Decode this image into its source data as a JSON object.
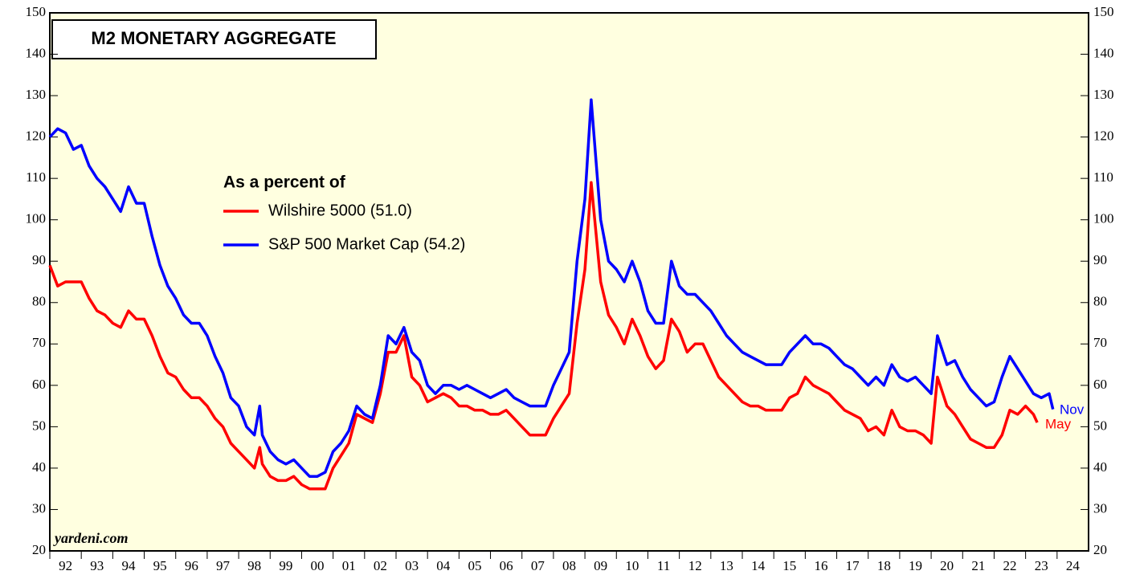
{
  "chart_data": {
    "type": "line",
    "title": "M2 MONETARY AGGREGATE",
    "subtitle": "As a percent of",
    "annotations": [
      "yardeni.com",
      "Nov",
      "May"
    ],
    "x": [
      1992.0,
      1992.25,
      1992.5,
      1992.75,
      1993.0,
      1993.25,
      1993.5,
      1993.75,
      1994.0,
      1994.25,
      1994.5,
      1994.75,
      1995.0,
      1995.25,
      1995.5,
      1995.75,
      1996.0,
      1996.25,
      1996.5,
      1996.75,
      1997.0,
      1997.25,
      1997.5,
      1997.75,
      1998.0,
      1998.25,
      1998.5,
      1998.67,
      1998.75,
      1999.0,
      1999.25,
      1999.5,
      1999.75,
      2000.0,
      2000.25,
      2000.5,
      2000.75,
      2001.0,
      2001.25,
      2001.5,
      2001.75,
      2002.0,
      2002.25,
      2002.5,
      2002.75,
      2003.0,
      2003.25,
      2003.5,
      2003.75,
      2004.0,
      2004.25,
      2004.5,
      2004.75,
      2005.0,
      2005.25,
      2005.5,
      2005.75,
      2006.0,
      2006.25,
      2006.5,
      2006.75,
      2007.0,
      2007.25,
      2007.5,
      2007.75,
      2008.0,
      2008.25,
      2008.5,
      2008.75,
      2009.0,
      2009.2,
      2009.5,
      2009.75,
      2010.0,
      2010.25,
      2010.5,
      2010.75,
      2011.0,
      2011.25,
      2011.5,
      2011.75,
      2012.0,
      2012.25,
      2012.5,
      2012.75,
      2013.0,
      2013.25,
      2013.5,
      2013.75,
      2014.0,
      2014.25,
      2014.5,
      2014.75,
      2015.0,
      2015.25,
      2015.5,
      2015.75,
      2016.0,
      2016.25,
      2016.5,
      2016.75,
      2017.0,
      2017.25,
      2017.5,
      2017.75,
      2018.0,
      2018.25,
      2018.5,
      2018.75,
      2019.0,
      2019.25,
      2019.5,
      2019.75,
      2020.0,
      2020.2,
      2020.5,
      2020.75,
      2021.0,
      2021.25,
      2021.5,
      2021.75,
      2022.0,
      2022.25,
      2022.5,
      2022.75,
      2023.0,
      2023.25,
      2023.37,
      2023.5,
      2023.75,
      2023.87
    ],
    "series": [
      {
        "name": "Wilshire 5000 (51.0)",
        "color": "#ff0000",
        "values": [
          89,
          84,
          85,
          85,
          85,
          81,
          78,
          77,
          75,
          74,
          78,
          76,
          76,
          72,
          67,
          63,
          62,
          59,
          57,
          57,
          55,
          52,
          50,
          46,
          44,
          42,
          40,
          45,
          41,
          38,
          37,
          37,
          38,
          36,
          35,
          35,
          35,
          40,
          43,
          46,
          53,
          52,
          51,
          58,
          68,
          68,
          72,
          62,
          60,
          56,
          57,
          58,
          57,
          55,
          55,
          54,
          54,
          53,
          53,
          54,
          52,
          50,
          48,
          48,
          48,
          52,
          55,
          58,
          75,
          88,
          109,
          85,
          77,
          74,
          70,
          76,
          72,
          67,
          64,
          66,
          76,
          73,
          68,
          70,
          70,
          66,
          62,
          60,
          58,
          56,
          55,
          55,
          54,
          54,
          54,
          57,
          58,
          62,
          60,
          59,
          58,
          56,
          54,
          53,
          52,
          49,
          50,
          48,
          54,
          50,
          49,
          49,
          48,
          46,
          62,
          55,
          53,
          50,
          47,
          46,
          45,
          45,
          48,
          54,
          53,
          55,
          53,
          51,
          null,
          null,
          null
        ]
      },
      {
        "name": "S&P 500 Market Cap (54.2)",
        "color": "#0000ff",
        "values": [
          120,
          122,
          121,
          117,
          118,
          113,
          110,
          108,
          105,
          102,
          108,
          104,
          104,
          96,
          89,
          84,
          81,
          77,
          75,
          75,
          72,
          67,
          63,
          57,
          55,
          50,
          48,
          55,
          48,
          44,
          42,
          41,
          42,
          40,
          38,
          38,
          39,
          44,
          46,
          49,
          55,
          53,
          52,
          60,
          72,
          70,
          74,
          68,
          66,
          60,
          58,
          60,
          60,
          59,
          60,
          59,
          58,
          57,
          58,
          59,
          57,
          56,
          55,
          55,
          55,
          60,
          64,
          68,
          90,
          105,
          129,
          100,
          90,
          88,
          85,
          90,
          85,
          78,
          75,
          75,
          90,
          84,
          82,
          82,
          80,
          78,
          75,
          72,
          70,
          68,
          67,
          66,
          65,
          65,
          65,
          68,
          70,
          72,
          70,
          70,
          69,
          67,
          65,
          64,
          62,
          60,
          62,
          60,
          65,
          62,
          61,
          62,
          60,
          58,
          72,
          65,
          66,
          62,
          59,
          57,
          55,
          56,
          62,
          67,
          64,
          61,
          58,
          57.5,
          57,
          58,
          54.2
        ]
      }
    ],
    "xlim": [
      1992,
      2025
    ],
    "xticks": [
      {
        "value": 1992.5,
        "label": "92"
      },
      {
        "value": 1993.5,
        "label": "93"
      },
      {
        "value": 1994.5,
        "label": "94"
      },
      {
        "value": 1995.5,
        "label": "95"
      },
      {
        "value": 1996.5,
        "label": "96"
      },
      {
        "value": 1997.5,
        "label": "97"
      },
      {
        "value": 1998.5,
        "label": "98"
      },
      {
        "value": 1999.5,
        "label": "99"
      },
      {
        "value": 2000.5,
        "label": "00"
      },
      {
        "value": 2001.5,
        "label": "01"
      },
      {
        "value": 2002.5,
        "label": "02"
      },
      {
        "value": 2003.5,
        "label": "03"
      },
      {
        "value": 2004.5,
        "label": "04"
      },
      {
        "value": 2005.5,
        "label": "05"
      },
      {
        "value": 2006.5,
        "label": "06"
      },
      {
        "value": 2007.5,
        "label": "07"
      },
      {
        "value": 2008.5,
        "label": "08"
      },
      {
        "value": 2009.5,
        "label": "09"
      },
      {
        "value": 2010.5,
        "label": "10"
      },
      {
        "value": 2011.5,
        "label": "11"
      },
      {
        "value": 2012.5,
        "label": "12"
      },
      {
        "value": 2013.5,
        "label": "13"
      },
      {
        "value": 2014.5,
        "label": "14"
      },
      {
        "value": 2015.5,
        "label": "15"
      },
      {
        "value": 2016.5,
        "label": "16"
      },
      {
        "value": 2017.5,
        "label": "17"
      },
      {
        "value": 2018.5,
        "label": "18"
      },
      {
        "value": 2019.5,
        "label": "19"
      },
      {
        "value": 2020.5,
        "label": "20"
      },
      {
        "value": 2021.5,
        "label": "21"
      },
      {
        "value": 2022.5,
        "label": "22"
      },
      {
        "value": 2023.5,
        "label": "23"
      },
      {
        "value": 2024.5,
        "label": "24"
      }
    ],
    "ylim": [
      20,
      150
    ],
    "yticks": [
      20,
      30,
      40,
      50,
      60,
      70,
      80,
      90,
      100,
      110,
      120,
      130,
      140,
      150
    ],
    "grid": false
  }
}
